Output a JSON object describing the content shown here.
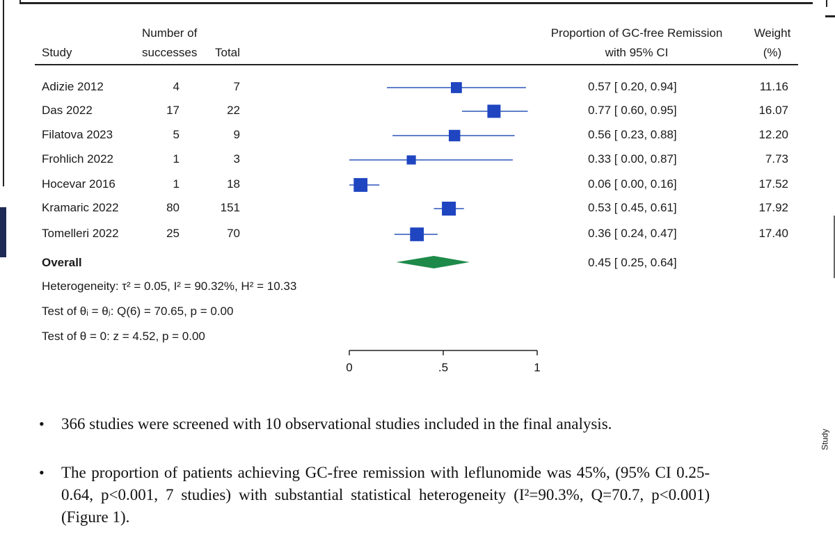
{
  "headers": {
    "study": "Study",
    "successes_line1": "Number of",
    "successes_line2": "successes",
    "total": "Total",
    "estimate_line1": "Proportion of GC-free Remission",
    "estimate_line2": "with 95% CI",
    "weight_line1": "Weight",
    "weight_line2": "(%)"
  },
  "rows": [
    {
      "study": "Adizie 2012",
      "successes": "4",
      "total": "7",
      "ci": "0.57 [ 0.20,  0.94]",
      "weight": "11.16"
    },
    {
      "study": "Das 2022",
      "successes": "17",
      "total": "22",
      "ci": "0.77 [ 0.60,  0.95]",
      "weight": "16.07"
    },
    {
      "study": "Filatova 2023",
      "successes": "5",
      "total": "9",
      "ci": "0.56 [ 0.23,  0.88]",
      "weight": "12.20"
    },
    {
      "study": "Frohlich 2022",
      "successes": "1",
      "total": "3",
      "ci": "0.33 [ 0.00,  0.87]",
      "weight": "7.73"
    },
    {
      "study": "Hocevar 2016",
      "successes": "1",
      "total": "18",
      "ci": "0.06 [ 0.00,  0.16]",
      "weight": "17.52"
    },
    {
      "study": "Kramaric 2022",
      "successes": "80",
      "total": "151",
      "ci": "0.53 [ 0.45,  0.61]",
      "weight": "17.92"
    },
    {
      "study": "Tomelleri 2022",
      "successes": "25",
      "total": "70",
      "ci": "0.36 [ 0.24,  0.47]",
      "weight": "17.40"
    }
  ],
  "overall": {
    "label": "Overall",
    "ci": "0.45 [ 0.25,  0.64]"
  },
  "stats": {
    "heterogeneity": "Heterogeneity: τ² = 0.05, I² = 90.32%, H² = 10.33",
    "test_theta_i": "Test of θᵢ = θⱼ: Q(6) = 70.65, p = 0.00",
    "test_theta_0": "Test of θ = 0: z = 4.52, p = 0.00"
  },
  "side_label": "Study",
  "bullets": [
    "366 studies were screened with 10 observational studies included in the final analysis.",
    "The proportion of patients achieving GC-free remission with leflunomide was 45%, (95% CI 0.25-0.64, p<0.001, 7 studies) with substantial statistical heterogeneity (I²=90.3%, Q=70.7, p<0.001) (Figure 1)."
  ],
  "colors": {
    "marker": "#1f45c0",
    "ci_line": "#2a55b8",
    "diamond": "#1e8a4a"
  },
  "chart_data": {
    "type": "forest",
    "title": "",
    "xlabel": "Proportion of GC-free Remission with 95% CI",
    "xlim": [
      0,
      1
    ],
    "xticks": [
      {
        "value": 0,
        "label": "0"
      },
      {
        "value": 0.5,
        "label": ".5"
      },
      {
        "value": 1,
        "label": "1"
      }
    ],
    "studies": [
      {
        "name": "Adizie 2012",
        "est": 0.57,
        "lo": 0.2,
        "hi": 0.94,
        "weight": 11.16
      },
      {
        "name": "Das 2022",
        "est": 0.77,
        "lo": 0.6,
        "hi": 0.95,
        "weight": 16.07
      },
      {
        "name": "Filatova 2023",
        "est": 0.56,
        "lo": 0.23,
        "hi": 0.88,
        "weight": 12.2
      },
      {
        "name": "Frohlich 2022",
        "est": 0.33,
        "lo": 0.0,
        "hi": 0.87,
        "weight": 7.73
      },
      {
        "name": "Hocevar 2016",
        "est": 0.06,
        "lo": 0.0,
        "hi": 0.16,
        "weight": 17.52
      },
      {
        "name": "Kramaric 2022",
        "est": 0.53,
        "lo": 0.45,
        "hi": 0.61,
        "weight": 17.92
      },
      {
        "name": "Tomelleri 2022",
        "est": 0.36,
        "lo": 0.24,
        "hi": 0.47,
        "weight": 17.4
      }
    ],
    "overall": {
      "est": 0.45,
      "lo": 0.25,
      "hi": 0.64
    }
  }
}
